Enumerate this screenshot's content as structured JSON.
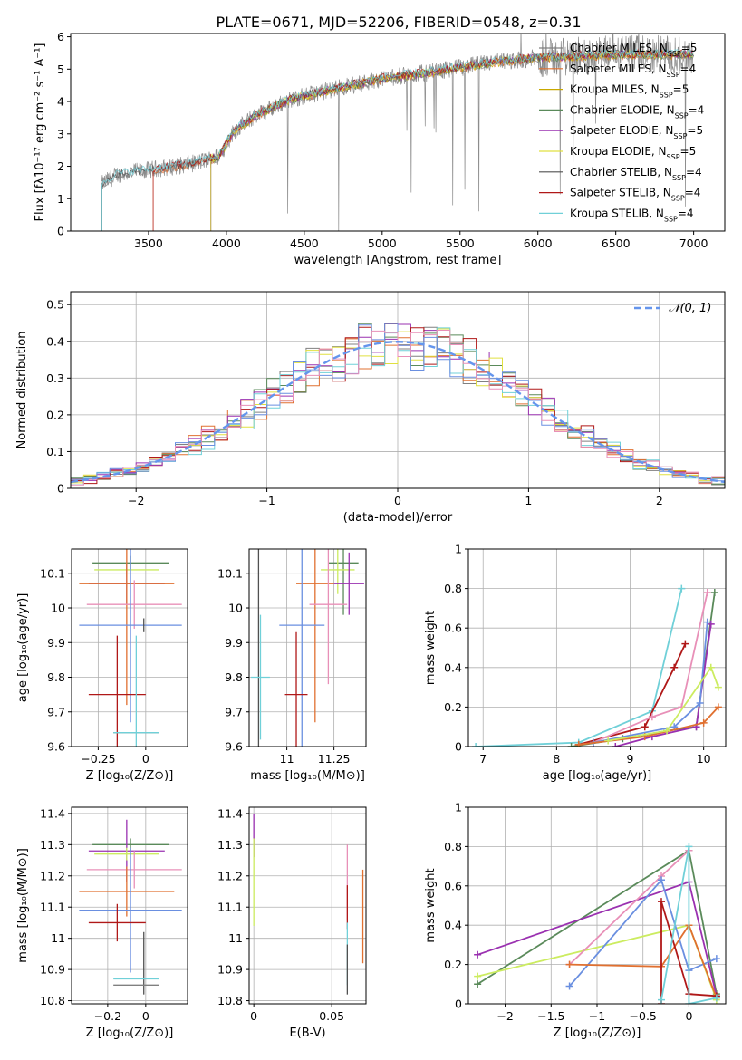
{
  "figure": {
    "title": "PLATE=0671, MJD=52206, FIBERID=0548, z=0.31"
  },
  "colors": {
    "Chabrier MILES": "#808080",
    "Salpeter MILES": "#e07030",
    "Kroupa MILES": "#c8a800",
    "Chabrier ELODIE": "#5a8a5a",
    "Salpeter ELODIE": "#9a30b0",
    "Kroupa ELODIE": "#e0e040",
    "Chabrier STELIB": "#505050",
    "Salpeter STELIB": "#b01818",
    "Kroupa STELIB": "#70d0d8",
    "extra_blue": "#6a8fe0",
    "extra_pink": "#e890b8",
    "extra_green": "#ccec60",
    "normal_curve": "#6495ed"
  },
  "chart_data": [
    {
      "id": "spectrum",
      "type": "line",
      "title": "PLATE=0671, MJD=52206, FIBERID=0548, z=0.31",
      "xlabel": "wavelength [Angstrom, rest frame]",
      "ylabel": "Flux [fλ10⁻¹⁷ erg cm⁻² s⁻¹ A⁻¹]",
      "xlim": [
        3000,
        7200
      ],
      "ylim": [
        0,
        6.1
      ],
      "xticks": [
        3500,
        4000,
        4500,
        5000,
        5500,
        6000,
        6500,
        7000
      ],
      "yticks": [
        0,
        1,
        2,
        3,
        4,
        5,
        6
      ],
      "grid": false,
      "legend_position": "top-right",
      "observed_range": [
        3200,
        7000
      ],
      "continuum": {
        "x": [
          3200,
          3300,
          3600,
          3800,
          3950,
          4050,
          4200,
          4400,
          4700,
          5000,
          5300,
          5700,
          6000,
          6500,
          7000
        ],
        "y": [
          1.45,
          1.75,
          1.95,
          2.1,
          2.3,
          3.1,
          3.6,
          4.05,
          4.4,
          4.7,
          4.9,
          5.2,
          5.35,
          5.45,
          5.45
        ]
      },
      "series": [
        {
          "name": "Chabrier MILES, N",
          "sub": "SSP",
          "suffix": "=5",
          "start": 3200
        },
        {
          "name": "Salpeter MILES, N",
          "sub": "SSP",
          "suffix": "=4",
          "start": 3530
        },
        {
          "name": "Kroupa MILES, N",
          "sub": "SSP",
          "suffix": "=5",
          "start": 3900
        },
        {
          "name": "Chabrier ELODIE, N",
          "sub": "SSP",
          "suffix": "=4",
          "start": 3900
        },
        {
          "name": "Salpeter ELODIE, N",
          "sub": "SSP",
          "suffix": "=5",
          "start": 3900
        },
        {
          "name": "Kroupa ELODIE, N",
          "sub": "SSP",
          "suffix": "=5",
          "start": 3900
        },
        {
          "name": "Chabrier STELIB, N",
          "sub": "SSP",
          "suffix": "=4",
          "start": 3200
        },
        {
          "name": "Salpeter STELIB, N",
          "sub": "SSP",
          "suffix": "=4",
          "start": 3530
        },
        {
          "name": "Kroupa STELIB, N",
          "sub": "SSP",
          "suffix": "=4",
          "start": 3200
        }
      ]
    },
    {
      "id": "residuals",
      "type": "bar",
      "xlabel": "(data-model)/error",
      "ylabel": "Normed distribution",
      "xlim": [
        -2.5,
        2.5
      ],
      "ylim": [
        0,
        0.535
      ],
      "xticks": [
        -2,
        -1,
        0,
        1,
        2
      ],
      "yticks": [
        0.0,
        0.1,
        0.2,
        0.3,
        0.4,
        0.5
      ],
      "grid": true,
      "legend_position": "top-right",
      "legend": "𝒩(0, 1)",
      "bin_width": 0.1,
      "normal": {
        "mean": 0,
        "std": 1
      }
    },
    {
      "id": "age_vs_z",
      "type": "scatter",
      "xlabel": "Z [log₁₀(Z/Z⊙)]",
      "ylabel": "age  [log₁₀(age/yr)]",
      "xlim": [
        -0.39,
        0.22
      ],
      "ylim": [
        9.6,
        10.17
      ],
      "xticks": [
        -0.25,
        0.0
      ],
      "yticks": [
        9.6,
        9.7,
        9.8,
        9.9,
        10.0,
        10.1
      ],
      "grid": true,
      "errorbars": [
        {
          "color": "Chabrier ELODIE",
          "x": -0.08,
          "xerr": 0.2,
          "y": 10.13,
          "yerr": 0.02
        },
        {
          "color": "extra_green",
          "x": -0.1,
          "xerr": 0.17,
          "y": 10.11,
          "yerr": 0.02
        },
        {
          "color": "Salpeter ELODIE",
          "x": -0.1,
          "xerr": 0.2,
          "y": 10.07,
          "yerr": 0.06
        },
        {
          "color": "Salpeter MILES",
          "x": -0.1,
          "xerr": 0.25,
          "y": 10.07,
          "yerr": 0.35
        },
        {
          "color": "extra_pink",
          "x": -0.06,
          "xerr": 0.25,
          "y": 10.01,
          "yerr": 0.07
        },
        {
          "color": "extra_blue",
          "x": -0.08,
          "xerr": 0.27,
          "y": 9.95,
          "yerr": 0.28
        },
        {
          "color": "Chabrier STELIB",
          "x": -0.01,
          "xerr": 0.0,
          "y": 9.95,
          "yerr": 0.02
        },
        {
          "color": "Salpeter STELIB",
          "x": -0.15,
          "xerr": 0.15,
          "y": 9.75,
          "yerr": 0.17
        },
        {
          "color": "Chabrier MILES",
          "x": -0.05,
          "xerr": 0.12,
          "y": 9.64,
          "yerr": 0.0
        },
        {
          "color": "Kroupa STELIB",
          "x": -0.05,
          "xerr": 0.12,
          "y": 9.64,
          "yerr": 0.28
        }
      ]
    },
    {
      "id": "age_vs_mass",
      "type": "scatter",
      "xlabel": "mass [log₁₀(M/M⊙)]",
      "ylabel": "",
      "xlim": [
        10.8,
        11.42
      ],
      "ylim": [
        9.6,
        10.17
      ],
      "xticks": [
        11.0,
        11.25
      ],
      "yticks": [
        9.6,
        9.7,
        9.8,
        9.9,
        10.0,
        10.1
      ],
      "grid": true,
      "errorbars": [
        {
          "color": "Chabrier ELODIE",
          "x": 11.3,
          "xerr": 0.08,
          "y": 10.13,
          "yerr": 0.15
        },
        {
          "color": "extra_green",
          "x": 11.27,
          "xerr": 0.09,
          "y": 10.11,
          "yerr": 0.07
        },
        {
          "color": "Salpeter ELODIE",
          "x": 11.33,
          "xerr": 0.08,
          "y": 10.07,
          "yerr": 0.09
        },
        {
          "color": "Salpeter MILES",
          "x": 11.15,
          "xerr": 0.1,
          "y": 10.07,
          "yerr": 0.4
        },
        {
          "color": "extra_pink",
          "x": 11.22,
          "xerr": 0.1,
          "y": 10.01,
          "yerr": 0.23
        },
        {
          "color": "extra_blue",
          "x": 11.08,
          "xerr": 0.12,
          "y": 9.95,
          "yerr": 0.38
        },
        {
          "color": "Chabrier STELIB",
          "x": 10.85,
          "xerr": 0.0,
          "y": 9.9,
          "yerr": 0.3
        },
        {
          "color": "Salpeter STELIB",
          "x": 11.05,
          "xerr": 0.06,
          "y": 9.75,
          "yerr": 0.18
        },
        {
          "color": "Chabrier MILES",
          "x": 10.85,
          "xerr": 0.0,
          "y": 9.64,
          "yerr": 0.0
        },
        {
          "color": "Kroupa STELIB",
          "x": 10.86,
          "xerr": 0.05,
          "y": 9.8,
          "yerr": 0.18
        }
      ]
    },
    {
      "id": "weight_vs_age",
      "type": "line",
      "xlabel": "age  [log₁₀(age/yr)]",
      "ylabel": "mass weight",
      "xlim": [
        6.8,
        10.3
      ],
      "ylim": [
        0.0,
        1.0
      ],
      "xticks": [
        7,
        8,
        9,
        10
      ],
      "yticks": [
        0.0,
        0.2,
        0.4,
        0.6,
        0.8,
        1.0
      ],
      "grid": true,
      "series": [
        {
          "color": "Kroupa STELIB",
          "x": [
            6.9,
            8.3,
            9.3,
            9.7
          ],
          "y": [
            0.0,
            0.02,
            0.18,
            0.8
          ]
        },
        {
          "color": "Chabrier ELODIE",
          "x": [
            8.2,
            8.9,
            9.5,
            9.9,
            10.15
          ],
          "y": [
            0.0,
            0.04,
            0.08,
            0.1,
            0.78
          ]
        },
        {
          "color": "Salpeter STELIB",
          "x": [
            8.3,
            9.2,
            9.6,
            9.75
          ],
          "y": [
            0.01,
            0.1,
            0.4,
            0.52
          ]
        },
        {
          "color": "extra_pink",
          "x": [
            8.5,
            9.3,
            9.7,
            10.05
          ],
          "y": [
            0.02,
            0.15,
            0.2,
            0.78
          ]
        },
        {
          "color": "Salpeter ELODIE",
          "x": [
            8.8,
            9.3,
            9.9,
            10.1
          ],
          "y": [
            0.0,
            0.05,
            0.1,
            0.62
          ]
        },
        {
          "color": "extra_blue",
          "x": [
            8.5,
            9.6,
            9.95,
            10.05
          ],
          "y": [
            0.02,
            0.1,
            0.22,
            0.63
          ]
        },
        {
          "color": "Salpeter MILES",
          "x": [
            8.3,
            9.2,
            10.0,
            10.2
          ],
          "y": [
            0.01,
            0.05,
            0.12,
            0.2
          ]
        },
        {
          "color": "extra_green",
          "x": [
            8.7,
            9.5,
            10.1,
            10.2
          ],
          "y": [
            0.03,
            0.08,
            0.4,
            0.3
          ]
        }
      ]
    },
    {
      "id": "mass_vs_z",
      "type": "scatter",
      "xlabel": "Z [log₁₀(Z/Z⊙)]",
      "ylabel": "mass [log₁₀(M/M⊙)]",
      "xlim": [
        -0.39,
        0.22
      ],
      "ylim": [
        10.79,
        11.42
      ],
      "xticks": [
        -0.2,
        0.0
      ],
      "yticks": [
        10.8,
        10.9,
        11.0,
        11.1,
        11.2,
        11.3,
        11.4
      ],
      "grid": true,
      "errorbars": [
        {
          "color": "Chabrier ELODIE",
          "x": -0.08,
          "xerr": 0.2,
          "y": 11.3,
          "yerr": 0.02
        },
        {
          "color": "Salpeter ELODIE",
          "x": -0.1,
          "xerr": 0.2,
          "y": 11.28,
          "yerr": 0.1
        },
        {
          "color": "extra_green",
          "x": -0.1,
          "xerr": 0.17,
          "y": 11.27,
          "yerr": 0.02
        },
        {
          "color": "extra_pink",
          "x": -0.06,
          "xerr": 0.25,
          "y": 11.22,
          "yerr": 0.06
        },
        {
          "color": "Salpeter MILES",
          "x": -0.1,
          "xerr": 0.25,
          "y": 11.15,
          "yerr": 0.08
        },
        {
          "color": "extra_blue",
          "x": -0.08,
          "xerr": 0.27,
          "y": 11.09,
          "yerr": 0.2
        },
        {
          "color": "Salpeter STELIB",
          "x": -0.15,
          "xerr": 0.15,
          "y": 11.05,
          "yerr": 0.06
        },
        {
          "color": "Chabrier STELIB",
          "x": -0.01,
          "xerr": 0.0,
          "y": 10.92,
          "yerr": 0.1
        },
        {
          "color": "Kroupa STELIB",
          "x": -0.05,
          "xerr": 0.12,
          "y": 10.87,
          "yerr": 0.0
        },
        {
          "color": "Chabrier MILES",
          "x": -0.05,
          "xerr": 0.12,
          "y": 10.85,
          "yerr": 0.0
        }
      ]
    },
    {
      "id": "mass_vs_ebv",
      "type": "scatter",
      "xlabel": "E(B-V)",
      "ylabel": "",
      "xlim": [
        -0.003,
        0.072
      ],
      "ylim": [
        10.79,
        11.42
      ],
      "xticks": [
        0.0,
        0.05
      ],
      "yticks": [
        10.8,
        10.9,
        11.0,
        11.1,
        11.2,
        11.3,
        11.4
      ],
      "grid": true,
      "errorbars": [
        {
          "color": "Salpeter ELODIE",
          "x": 0.0,
          "xerr": 0.0,
          "y": 11.33,
          "yerr": 0.07
        },
        {
          "color": "extra_green",
          "x": 0.0,
          "xerr": 0.0,
          "y": 11.18,
          "yerr": 0.14
        },
        {
          "color": "extra_pink",
          "x": 0.06,
          "xerr": 0.0,
          "y": 11.18,
          "yerr": 0.12
        },
        {
          "color": "Salpeter STELIB",
          "x": 0.06,
          "xerr": 0.0,
          "y": 11.1,
          "yerr": 0.07
        },
        {
          "color": "Salpeter MILES",
          "x": 0.07,
          "xerr": 0.0,
          "y": 11.07,
          "yerr": 0.15
        },
        {
          "color": "Kroupa STELIB",
          "x": 0.06,
          "xerr": 0.0,
          "y": 10.95,
          "yerr": 0.1
        },
        {
          "color": "Chabrier STELIB",
          "x": 0.06,
          "xerr": 0.0,
          "y": 10.9,
          "yerr": 0.08
        }
      ]
    },
    {
      "id": "weight_vs_z",
      "type": "line",
      "xlabel": "Z [log₁₀(Z/Z⊙)]",
      "ylabel": "mass weight",
      "xlim": [
        -2.4,
        0.4
      ],
      "ylim": [
        0.0,
        1.0
      ],
      "xticks": [
        -2.0,
        -1.5,
        -1.0,
        -0.5,
        0.0
      ],
      "yticks": [
        0.0,
        0.2,
        0.4,
        0.6,
        0.8,
        1.0
      ],
      "grid": true,
      "series": [
        {
          "color": "Chabrier ELODIE",
          "x": [
            -2.3,
            0.0,
            0.3
          ],
          "y": [
            0.1,
            0.78,
            0.05
          ]
        },
        {
          "color": "Salpeter ELODIE",
          "x": [
            -2.3,
            0.0,
            0.3
          ],
          "y": [
            0.25,
            0.62,
            0.04
          ]
        },
        {
          "color": "extra_green",
          "x": [
            -2.3,
            0.0,
            0.3
          ],
          "y": [
            0.14,
            0.4,
            0.02
          ]
        },
        {
          "color": "extra_pink",
          "x": [
            -1.3,
            -0.3,
            0.0
          ],
          "y": [
            0.2,
            0.65,
            0.78
          ]
        },
        {
          "color": "extra_blue",
          "x": [
            -1.3,
            -0.3,
            0.0,
            0.3
          ],
          "y": [
            0.09,
            0.63,
            0.17,
            0.23
          ]
        },
        {
          "color": "Salpeter MILES",
          "x": [
            -1.3,
            -0.3,
            0.0,
            0.3
          ],
          "y": [
            0.2,
            0.19,
            0.4,
            0.03
          ]
        },
        {
          "color": "Salpeter STELIB",
          "x": [
            -0.3,
            -0.3,
            0.0,
            0.3
          ],
          "y": [
            0.0,
            0.52,
            0.05,
            0.04
          ]
        },
        {
          "color": "Kroupa STELIB",
          "x": [
            -0.3,
            0.0,
            0.0,
            0.3
          ],
          "y": [
            0.02,
            0.8,
            0.0,
            0.03
          ]
        }
      ]
    }
  ]
}
